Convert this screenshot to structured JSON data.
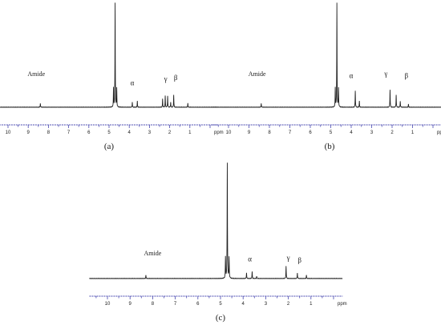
{
  "colors": {
    "trace": "#222222",
    "axis": "#4a4ab0",
    "text": "#1a1a1a"
  },
  "chart_data": [
    {
      "type": "line",
      "caption": "(a)",
      "xlabel": "ppm",
      "xlim": [
        10.8,
        -0.4
      ],
      "ylim": [
        0,
        100
      ],
      "x_ticks": [
        10,
        9,
        8,
        7,
        6,
        5,
        4,
        3,
        2,
        1
      ],
      "peaks": [
        {
          "ppm": 8.4,
          "height": 4
        },
        {
          "ppm": 4.7,
          "height": 100
        },
        {
          "ppm": 4.78,
          "height": 18
        },
        {
          "ppm": 4.62,
          "height": 18
        },
        {
          "ppm": 3.85,
          "height": 5
        },
        {
          "ppm": 3.6,
          "height": 6
        },
        {
          "ppm": 2.35,
          "height": 8
        },
        {
          "ppm": 2.22,
          "height": 11
        },
        {
          "ppm": 2.1,
          "height": 11
        },
        {
          "ppm": 1.95,
          "height": 5
        },
        {
          "ppm": 1.8,
          "height": 12
        },
        {
          "ppm": 1.1,
          "height": 4
        }
      ],
      "annotations": [
        {
          "text": "Amide",
          "ppm": 8.6,
          "level": 30
        },
        {
          "text": "α",
          "ppm": 3.85,
          "level": 21
        },
        {
          "text": "γ",
          "ppm": 2.2,
          "level": 25
        },
        {
          "text": "β",
          "ppm": 1.7,
          "level": 26
        }
      ]
    },
    {
      "type": "line",
      "caption": "(b)",
      "xlabel": "ppm",
      "xlim": [
        10.8,
        -0.4
      ],
      "ylim": [
        0,
        100
      ],
      "x_ticks": [
        10,
        9,
        8,
        7,
        6,
        5,
        4,
        3,
        2,
        1
      ],
      "peaks": [
        {
          "ppm": 8.4,
          "height": 4
        },
        {
          "ppm": 4.7,
          "height": 100
        },
        {
          "ppm": 4.78,
          "height": 18
        },
        {
          "ppm": 4.62,
          "height": 18
        },
        {
          "ppm": 3.8,
          "height": 16
        },
        {
          "ppm": 3.6,
          "height": 6
        },
        {
          "ppm": 2.1,
          "height": 17
        },
        {
          "ppm": 1.8,
          "height": 12
        },
        {
          "ppm": 1.6,
          "height": 6
        },
        {
          "ppm": 1.2,
          "height": 3
        }
      ],
      "annotations": [
        {
          "text": "Amide",
          "ppm": 8.6,
          "level": 30
        },
        {
          "text": "α",
          "ppm": 4.0,
          "level": 28
        },
        {
          "text": "γ",
          "ppm": 2.3,
          "level": 30
        },
        {
          "text": "β",
          "ppm": 1.3,
          "level": 28
        }
      ]
    },
    {
      "type": "line",
      "caption": "(c)",
      "xlabel": "ppm",
      "xlim": [
        10.8,
        -0.4
      ],
      "ylim": [
        0,
        100
      ],
      "x_ticks": [
        10,
        9,
        8,
        7,
        6,
        5,
        4,
        3,
        2,
        1
      ],
      "peaks": [
        {
          "ppm": 8.3,
          "height": 3
        },
        {
          "ppm": 4.7,
          "height": 100
        },
        {
          "ppm": 4.78,
          "height": 18
        },
        {
          "ppm": 4.62,
          "height": 18
        },
        {
          "ppm": 3.85,
          "height": 5
        },
        {
          "ppm": 3.6,
          "height": 6
        },
        {
          "ppm": 3.4,
          "height": 2
        },
        {
          "ppm": 2.1,
          "height": 11
        },
        {
          "ppm": 1.6,
          "height": 5
        },
        {
          "ppm": 1.2,
          "height": 3
        }
      ],
      "annotations": [
        {
          "text": "Amide",
          "ppm": 8.0,
          "level": 20
        },
        {
          "text": "α",
          "ppm": 3.7,
          "level": 15
        },
        {
          "text": "γ",
          "ppm": 2.0,
          "level": 16
        },
        {
          "text": "β",
          "ppm": 1.5,
          "level": 14
        }
      ]
    }
  ]
}
